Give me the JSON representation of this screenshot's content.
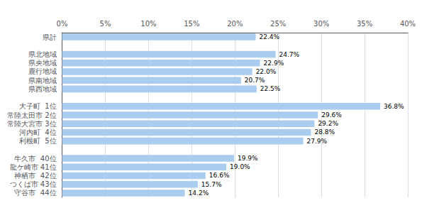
{
  "chart_data": {
    "type": "bar",
    "orientation": "horizontal",
    "categories": [
      "県計",
      null,
      "県北地域",
      "県央地域",
      "鹿行地域",
      "県南地域",
      "県西地域",
      null,
      "大子町  1位",
      "常陸太田市 2位",
      "常陸大宮市 3位",
      "河内町  4位",
      "利根町  5位",
      null,
      "牛久市  40位",
      "龍ケ崎市 41位",
      "神栖市  42位",
      "つくば市 43位",
      "守谷市  44位"
    ],
    "values": [
      22.4,
      null,
      24.7,
      22.9,
      22.0,
      20.7,
      22.5,
      null,
      36.8,
      29.6,
      29.2,
      28.8,
      27.9,
      null,
      19.9,
      19.0,
      16.6,
      15.7,
      14.2
    ],
    "value_labels": [
      "22.4%",
      null,
      "24.7%",
      "22.9%",
      "22.0%",
      "20.7%",
      "22.5%",
      null,
      "36.8%",
      "29.6%",
      "29.2%",
      "28.8%",
      "27.9%",
      null,
      "19.9%",
      "19.0%",
      "16.6%",
      "15.7%",
      "14.2%"
    ],
    "color": "#aaccee",
    "xlim": [
      0,
      40
    ],
    "xticks": [
      {
        "value": 0,
        "label": "0%"
      },
      {
        "value": 5,
        "label": "5%"
      },
      {
        "value": 10,
        "label": "10%"
      },
      {
        "value": 15,
        "label": "15%"
      },
      {
        "value": 20,
        "label": "20%"
      },
      {
        "value": 25,
        "label": "25%"
      },
      {
        "value": 30,
        "label": "30%"
      },
      {
        "value": 35,
        "label": "35%"
      },
      {
        "value": 40,
        "label": "40%"
      }
    ],
    "grid": true,
    "data_labels": true
  }
}
